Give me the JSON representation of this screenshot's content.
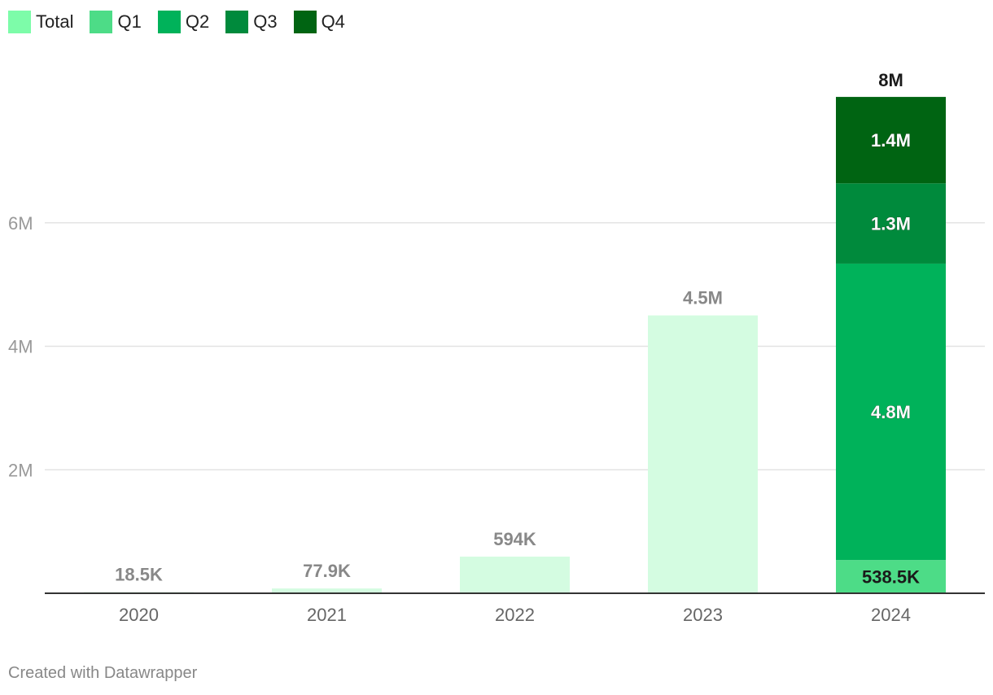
{
  "legend": [
    {
      "label": "Total",
      "color": "#7dfca9"
    },
    {
      "label": "Q1",
      "color": "#4ddc87"
    },
    {
      "label": "Q2",
      "color": "#00b25a"
    },
    {
      "label": "Q3",
      "color": "#008a3c"
    },
    {
      "label": "Q4",
      "color": "#006412"
    }
  ],
  "credit": "Created with Datawrapper",
  "chart_data": {
    "type": "bar",
    "stacked": true,
    "categories": [
      "2020",
      "2021",
      "2022",
      "2023",
      "2024"
    ],
    "ylim": [
      0,
      8000000
    ],
    "yticks": [
      {
        "value": 2000000,
        "label": "2M"
      },
      {
        "value": 4000000,
        "label": "4M"
      },
      {
        "value": 6000000,
        "label": "6M"
      }
    ],
    "grid": true,
    "legend_position": "top-left",
    "total_color": "#d4fce1",
    "series": [
      {
        "name": "Total",
        "color": "#d4fce1",
        "values": [
          18500,
          77900,
          594000,
          4500000,
          null
        ],
        "labels": [
          "18.5K",
          "77.9K",
          "594K",
          "4.5M",
          null
        ]
      },
      {
        "name": "Q1",
        "color": "#4ddc87",
        "values": [
          null,
          null,
          null,
          null,
          538500
        ],
        "labels": [
          null,
          null,
          null,
          null,
          "538.5K"
        ]
      },
      {
        "name": "Q2",
        "color": "#00b25a",
        "values": [
          null,
          null,
          null,
          null,
          4800000
        ],
        "labels": [
          null,
          null,
          null,
          null,
          "4.8M"
        ]
      },
      {
        "name": "Q3",
        "color": "#008a3c",
        "values": [
          null,
          null,
          null,
          null,
          1300000
        ],
        "labels": [
          null,
          null,
          null,
          null,
          "1.3M"
        ]
      },
      {
        "name": "Q4",
        "color": "#006412",
        "values": [
          null,
          null,
          null,
          null,
          1400000
        ],
        "labels": [
          null,
          null,
          null,
          null,
          "1.4M"
        ]
      }
    ],
    "totals": [
      {
        "category": "2024",
        "value": 8000000,
        "label": "8M"
      }
    ]
  }
}
